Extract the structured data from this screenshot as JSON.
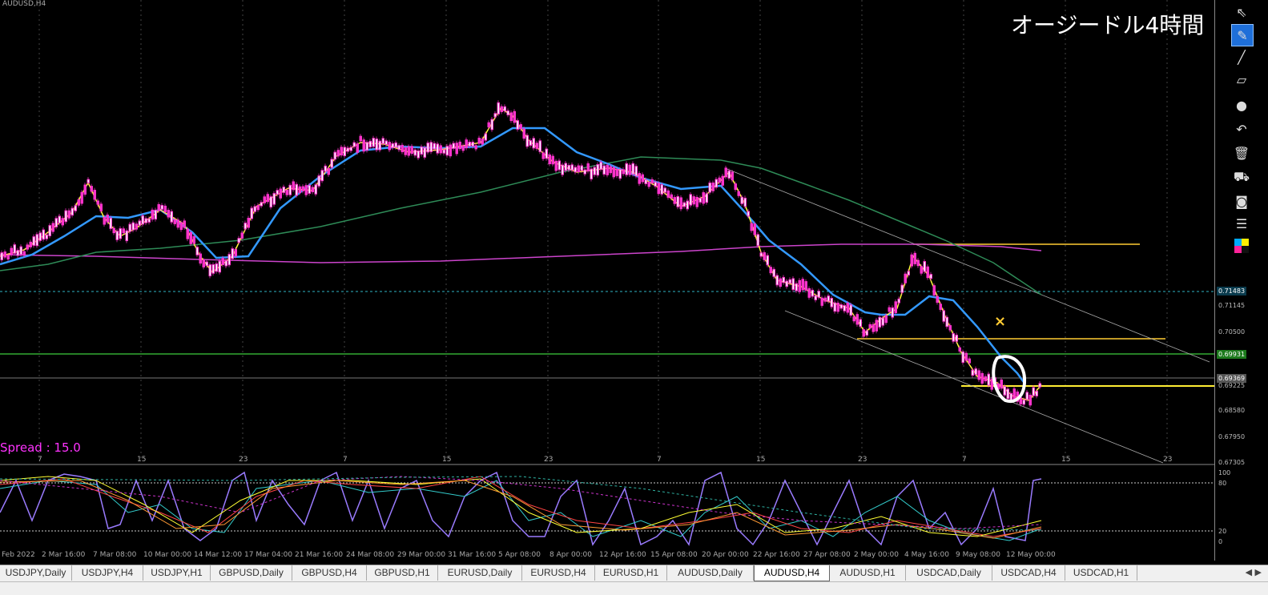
{
  "window": {
    "symbol_label": "AUDUSD,H4"
  },
  "overlay": {
    "title": "オージードル4時間",
    "spread": "Spread : 15.0"
  },
  "price_axis": {
    "ticks": [
      "0.71145",
      "0.70500",
      "0.69225",
      "0.68580",
      "0.67950",
      "0.67305"
    ],
    "tags": [
      {
        "text": "0.71483",
        "bg": "#0a3b4d",
        "fg": "#ffffff"
      },
      {
        "text": "0.69931",
        "bg": "#1c7a1c",
        "fg": "#ffffff"
      },
      {
        "text": "0.69369",
        "bg": "#555555",
        "fg": "#ffffff"
      }
    ],
    "oscillator_ticks": [
      "100",
      "80",
      "20",
      "0"
    ]
  },
  "time_axis": {
    "main_labels": [
      "7",
      "15",
      "23",
      "7",
      "15",
      "23",
      "7",
      "15",
      "23",
      "7",
      "15",
      "23"
    ],
    "bottom_labels": [
      "Feb 2022",
      "2 Mar 16:00",
      "7 Mar 08:00",
      "10 Mar 00:00",
      "14 Mar 12:00",
      "17 Mar 04:00",
      "21 Mar 16:00",
      "24 Mar 08:00",
      "29 Mar 00:00",
      "31 Mar 16:00",
      "5 Apr 08:00",
      "8 Apr 00:00",
      "12 Apr 16:00",
      "15 Apr 08:00",
      "20 Apr 00:00",
      "22 Apr 16:00",
      "27 Apr 08:00",
      "2 May 00:00",
      "4 May 16:00",
      "9 May 08:00",
      "12 May 00:00"
    ]
  },
  "toolbar": {
    "tools": [
      "cursor-icon",
      "eraser-icon",
      "line-icon",
      "ruler-icon",
      "dot-icon",
      "undo-icon",
      "trash-icon",
      "cart-icon",
      "camera-icon",
      "clipboard-icon",
      "color-palette-icon"
    ]
  },
  "tabs": {
    "items": [
      "USDJPY,Daily",
      "USDJPY,H4",
      "USDJPY,H1",
      "GBPUSD,Daily",
      "GBPUSD,H4",
      "GBPUSD,H1",
      "EURUSD,Daily",
      "EURUSD,H4",
      "EURUSD,H1",
      "AUDUSD,Daily",
      "AUDUSD,H4",
      "AUDUSD,H1",
      "USDCAD,Daily",
      "USDCAD,H4",
      "USDCAD,H1"
    ],
    "active": "AUDUSD,H4",
    "arrows": "◀ ▶"
  },
  "colors": {
    "ma_fast": "#ffff33",
    "ma_mid": "#3399ff",
    "ma_slow": "#2e8b57",
    "ma_long": "#cc44cc",
    "candle": "#ff33cc",
    "hline_yellow": "#ffcc33",
    "annotation": "#ffffff"
  }
}
